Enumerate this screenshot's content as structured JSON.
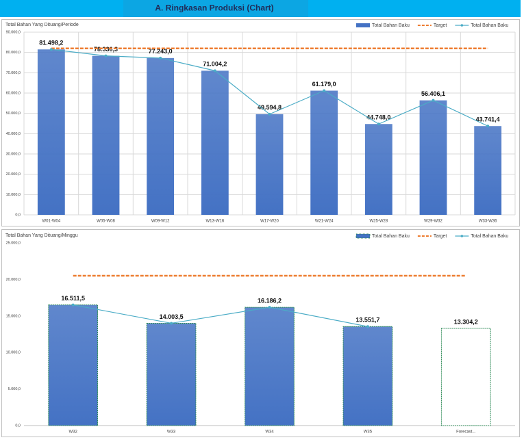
{
  "header": {
    "title": "A. Ringkasan Produksi (Chart)"
  },
  "chart_data": [
    {
      "type": "bar",
      "y_axis_label": "Total Bahan Yang Dituang/Periode",
      "categories": [
        "W01-W04",
        "W05-W08",
        "W09-W12",
        "W13-W16",
        "W17-W20",
        "W21-W24",
        "W25-W28",
        "W29-W32",
        "W33-W36"
      ],
      "series": [
        {
          "name": "Total Bahan Baku",
          "kind": "bar",
          "color": "#4472c4",
          "values": [
            81498.2,
            78336.3,
            77243.0,
            71004.2,
            49594.8,
            61179.0,
            44748.0,
            56406.1,
            43741.4
          ],
          "value_labels": [
            "81.498,2",
            "78.336,3",
            "77.243,0",
            "71.004,2",
            "49.594,8",
            "61.179,0",
            "44.748,0",
            "56.406,1",
            "43.741,4"
          ]
        },
        {
          "name": "Target",
          "kind": "dashed",
          "color": "#ed7d31",
          "values": [
            82000,
            82000,
            82000,
            82000,
            82000,
            82000,
            82000,
            82000,
            82000
          ]
        },
        {
          "name": "Total Bahan Baku",
          "kind": "line",
          "color": "#4bacc6",
          "values": [
            81498.2,
            78336.3,
            77243.0,
            71004.2,
            49594.8,
            61179.0,
            44748.0,
            56406.1,
            43741.4
          ]
        }
      ],
      "ylim": [
        0,
        90000
      ],
      "yticks": [
        {
          "value": 0,
          "label": "0,0"
        },
        {
          "value": 10000,
          "label": "10.000,0"
        },
        {
          "value": 20000,
          "label": "20.000,0"
        },
        {
          "value": 30000,
          "label": "30.000,0"
        },
        {
          "value": 40000,
          "label": "40.000,0"
        },
        {
          "value": 50000,
          "label": "50.000,0"
        },
        {
          "value": 60000,
          "label": "60.000,0"
        },
        {
          "value": 70000,
          "label": "70.000,0"
        },
        {
          "value": 80000,
          "label": "80.000,0"
        },
        {
          "value": 90000,
          "label": "90.000,0"
        }
      ],
      "grid": true,
      "legend": "top-right"
    },
    {
      "type": "bar",
      "y_axis_label": "Total Bahan Yang Dituang/Minggu",
      "categories": [
        "W32",
        "W33",
        "W34",
        "W35",
        "Forecast..."
      ],
      "series": [
        {
          "name": "Total Bahan Baku",
          "kind": "bar",
          "color": "#4472c4",
          "bar_colors": [
            "#4472c4",
            "#4472c4",
            "#4472c4",
            "#4472c4",
            "#ffffff"
          ],
          "border_color": "#2e8b57",
          "values": [
            16511.5,
            14003.5,
            16186.2,
            13551.7,
            13304.2
          ],
          "value_labels": [
            "16.511,5",
            "14.003,5",
            "16.186,2",
            "13.551,7",
            "13.304,2"
          ]
        },
        {
          "name": "Target",
          "kind": "dashed",
          "color": "#ed7d31",
          "values": [
            20500,
            20500,
            20500,
            20500,
            20500
          ]
        },
        {
          "name": "Total Bahan Baku",
          "kind": "line",
          "color": "#4bacc6",
          "values": [
            16511.5,
            14003.5,
            16186.2,
            13551.7,
            null
          ]
        }
      ],
      "ylim": [
        0,
        25000
      ],
      "yticks": [
        {
          "value": 0,
          "label": "0,0"
        },
        {
          "value": 5000,
          "label": "5.000,0"
        },
        {
          "value": 10000,
          "label": "10.000,0"
        },
        {
          "value": 15000,
          "label": "15.000,0"
        },
        {
          "value": 20000,
          "label": "20.000,0"
        },
        {
          "value": 25000,
          "label": "25.000,0"
        }
      ],
      "grid": false,
      "legend": "top-right"
    }
  ]
}
